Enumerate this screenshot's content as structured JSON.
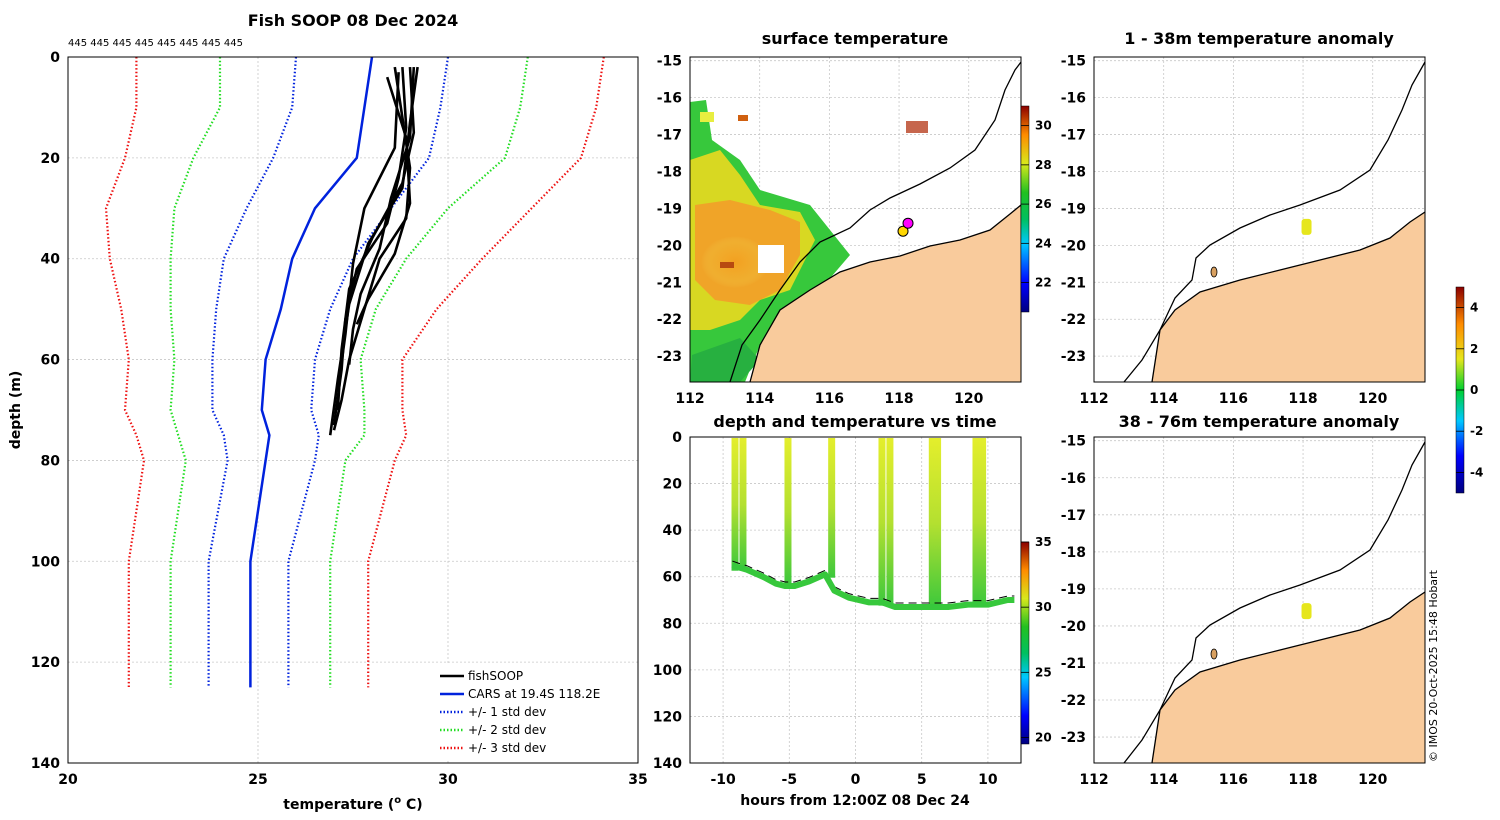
{
  "figure_title": "Fish SOOP 08 Dec 2024",
  "profile_ids": "445 445 445 445 445 445 445 445",
  "copyright": "© IMOS 20-Oct-2025 15:48 Hobart",
  "colors": {
    "fishsoop": "#000000",
    "cars": "#0022dd",
    "std1": "#0022dd",
    "std2": "#22dd22",
    "std3": "#ee1111",
    "land": "#f9cb9c"
  },
  "chart_data": [
    {
      "id": "profile",
      "type": "line",
      "title": "Fish SOOP 08 Dec 2024",
      "xlabel": "temperature (",
      "xlabel_sup": "o",
      "xlabel_tail": " C)",
      "ylabel": "depth (m)",
      "xlim": [
        20,
        35
      ],
      "ylim": [
        0,
        140
      ],
      "xticks": [
        "20",
        "25",
        "30",
        "35"
      ],
      "yticks": [
        "0",
        "20",
        "40",
        "60",
        "80",
        "100",
        "120",
        "140"
      ],
      "legend_position": "bottom-right",
      "legend": [
        "fishSOOP",
        "CARS at 19.4S 118.2E",
        "+/- 1 std dev",
        "+/- 2 std dev",
        "+/- 3 std dev"
      ],
      "depth": [
        0,
        10,
        20,
        30,
        40,
        50,
        60,
        70,
        75,
        80,
        100,
        125
      ],
      "series": [
        {
          "name": "CARS at 19.4S 118.2E",
          "style": "solid",
          "values": [
            28.0,
            27.8,
            27.6,
            26.5,
            25.9,
            25.6,
            25.2,
            25.1,
            25.3,
            25.2,
            24.8,
            24.8
          ]
        },
        {
          "name": "+/- 1 std dev (low)",
          "style": "dotted",
          "values": [
            26.0,
            25.9,
            25.4,
            24.7,
            24.1,
            23.9,
            23.8,
            23.8,
            24.1,
            24.2,
            23.7,
            23.7
          ]
        },
        {
          "name": "+/- 1 std dev (high)",
          "style": "dotted",
          "values": [
            30.0,
            29.8,
            29.5,
            28.5,
            27.5,
            26.9,
            26.5,
            26.4,
            26.6,
            26.5,
            25.8,
            25.8
          ]
        },
        {
          "name": "+/- 2 std dev (low)",
          "style": "dotted",
          "values": [
            24.0,
            24.0,
            23.3,
            22.8,
            22.7,
            22.7,
            22.8,
            22.7,
            22.9,
            23.1,
            22.7,
            22.7
          ]
        },
        {
          "name": "+/- 2 std dev (high)",
          "style": "dotted",
          "values": [
            32.1,
            31.9,
            31.5,
            30.0,
            28.9,
            28.1,
            27.7,
            27.8,
            27.8,
            27.3,
            26.9,
            26.9
          ]
        },
        {
          "name": "+/- 3 std dev (low)",
          "style": "dotted",
          "values": [
            21.8,
            21.8,
            21.5,
            21.0,
            21.1,
            21.4,
            21.6,
            21.5,
            21.8,
            22.0,
            21.6,
            21.6
          ]
        },
        {
          "name": "+/- 3 std dev (high)",
          "style": "dotted",
          "values": [
            34.1,
            33.9,
            33.5,
            32.2,
            30.9,
            29.7,
            28.8,
            28.8,
            28.9,
            28.6,
            27.9,
            27.9
          ]
        }
      ],
      "fishsoop_casts": [
        {
          "temp": [
            28.6,
            28.8,
            29.0,
            28.9,
            28.2,
            27.8,
            27.4,
            27.2,
            27.0
          ],
          "depth": [
            2,
            12,
            22,
            32,
            40,
            50,
            60,
            68,
            74
          ]
        },
        {
          "temp": [
            28.8,
            28.9,
            28.7,
            28.4,
            27.6,
            27.3,
            27.2,
            27.0
          ],
          "depth": [
            2,
            14,
            24,
            33,
            42,
            52,
            62,
            73
          ]
        },
        {
          "temp": [
            29.0,
            29.1,
            28.8,
            28.0,
            27.4,
            27.2,
            27.1
          ],
          "depth": [
            2,
            15,
            25,
            36,
            46,
            58,
            70
          ]
        },
        {
          "temp": [
            28.7,
            28.6,
            27.8,
            27.5,
            27.3,
            27.1
          ],
          "depth": [
            3,
            18,
            30,
            41,
            55,
            66
          ]
        },
        {
          "temp": [
            29.1,
            29.0,
            28.5,
            28.2,
            27.7,
            27.5,
            27.4
          ],
          "depth": [
            2,
            16,
            28,
            38,
            47,
            54,
            61
          ]
        },
        {
          "temp": [
            29.2,
            29.0,
            28.8,
            27.9,
            27.4,
            27.1,
            26.9
          ],
          "depth": [
            2,
            13,
            26,
            37,
            49,
            64,
            75
          ]
        },
        {
          "temp": [
            28.4,
            28.9,
            29.0,
            28.6,
            27.9,
            27.6
          ],
          "depth": [
            4,
            16,
            29,
            39,
            48,
            53
          ]
        }
      ]
    },
    {
      "id": "sst_map",
      "type": "heatmap",
      "title": "surface temperature",
      "xticks": [
        "112",
        "114",
        "116",
        "118",
        "120"
      ],
      "yticks": [
        "-15",
        "-16",
        "-17",
        "-18",
        "-19",
        "-20",
        "-21",
        "-22",
        "-23"
      ],
      "xlim": [
        112,
        121.5
      ],
      "ylim": [
        -23.7,
        -14.9
      ],
      "colorbar_ticks": [
        "30",
        "28",
        "26",
        "24",
        "22"
      ],
      "colorbar_range": [
        20.5,
        31
      ],
      "cast_location": [
        118.2,
        -19.4
      ]
    },
    {
      "id": "timeseries",
      "type": "scatter",
      "title": "depth and temperature vs time",
      "xlabel": "hours from 12:00Z 08 Dec 24",
      "xticks": [
        "-10",
        "-5",
        "0",
        "5",
        "10"
      ],
      "yticks": [
        "0",
        "20",
        "40",
        "60",
        "80",
        "100",
        "120",
        "140"
      ],
      "xlim": [
        -12.5,
        12.5
      ],
      "ylim": [
        0,
        140
      ],
      "colorbar_ticks": [
        "35",
        "30",
        "25",
        "20"
      ],
      "colorbar_range": [
        19.5,
        35
      ],
      "casts": [
        {
          "t": -9.1,
          "bottom": 57
        },
        {
          "t": -8.5,
          "bottom": 57
        },
        {
          "t": -5.1,
          "bottom": 63
        },
        {
          "t": -1.8,
          "bottom": 60
        },
        {
          "t": 2.0,
          "bottom": 72
        },
        {
          "t": 2.6,
          "bottom": 72
        },
        {
          "t": 5.8,
          "bottom": 73
        },
        {
          "t": 6.2,
          "bottom": 73
        },
        {
          "t": 9.1,
          "bottom": 72
        },
        {
          "t": 9.6,
          "bottom": 72
        }
      ],
      "bottom_path": {
        "t": [
          -9.3,
          -8.8,
          -8.2,
          -7.0,
          -6.0,
          -5.3,
          -4.6,
          -3.5,
          -2.3,
          -1.6,
          -0.5,
          1.0,
          2.0,
          3.0,
          4.5,
          5.8,
          7.0,
          8.5,
          9.2,
          10.0,
          11.5,
          12.0
        ],
        "depth": [
          55,
          56,
          57,
          60,
          63,
          64,
          64,
          62,
          59,
          66,
          69,
          71,
          71,
          73,
          73,
          73,
          73,
          72,
          72,
          72,
          70,
          70
        ]
      }
    },
    {
      "id": "anom_upper",
      "type": "heatmap",
      "title": "1 - 38m temperature anomaly",
      "xticks": [
        "112",
        "114",
        "116",
        "118",
        "120"
      ],
      "yticks": [
        "-15",
        "-16",
        "-17",
        "-18",
        "-19",
        "-20",
        "-21",
        "-22",
        "-23"
      ],
      "xlim": [
        112,
        121.5
      ],
      "ylim": [
        -23.7,
        -14.9
      ],
      "anomaly_location": [
        118.1,
        -19.5
      ]
    },
    {
      "id": "anom_lower",
      "type": "heatmap",
      "title": "38 - 76m temperature anomaly",
      "xticks": [
        "112",
        "114",
        "116",
        "118",
        "120"
      ],
      "yticks": [
        "-15",
        "-16",
        "-17",
        "-18",
        "-19",
        "-20",
        "-21",
        "-22",
        "-23"
      ],
      "xlim": [
        112,
        121.5
      ],
      "ylim": [
        -23.7,
        -14.9
      ],
      "anomaly_location": [
        118.1,
        -19.6
      ],
      "colorbar_ticks": [
        "4",
        "2",
        "0",
        "-2",
        "-4"
      ],
      "colorbar_range": [
        -5,
        5
      ]
    }
  ]
}
